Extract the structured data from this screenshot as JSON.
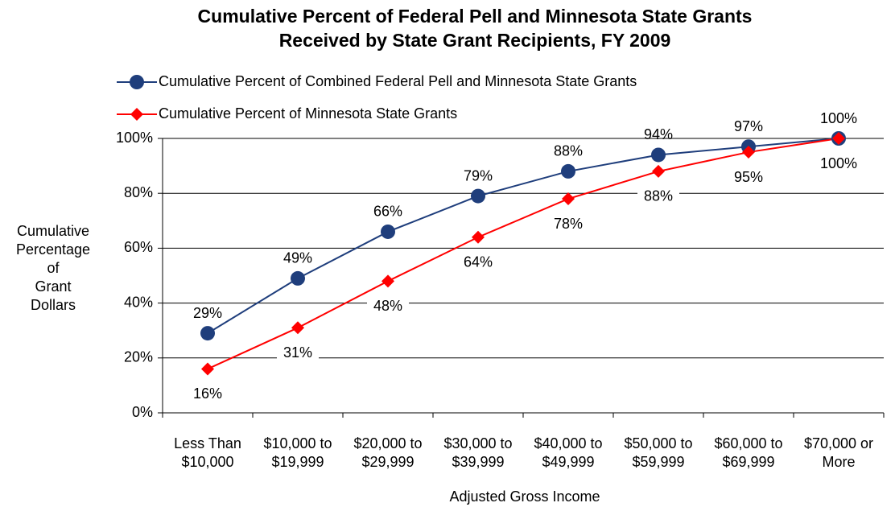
{
  "chart_data": {
    "type": "line",
    "title": [
      "Cumulative Percent of Federal Pell and Minnesota State Grants",
      "Received by State Grant Recipients, FY 2009"
    ],
    "categories": [
      [
        "Less Than",
        "$10,000"
      ],
      [
        "$10,000 to",
        "$19,999"
      ],
      [
        "$20,000 to",
        "$29,999"
      ],
      [
        "$30,000 to",
        "$39,999"
      ],
      [
        "$40,000 to",
        "$49,999"
      ],
      [
        "$50,000 to",
        "$59,999"
      ],
      [
        "$60,000 to",
        "$69,999"
      ],
      [
        "$70,000 or",
        "More"
      ]
    ],
    "series": [
      {
        "name": "Cumulative Percent of Combined Federal Pell and Minnesota State Grants",
        "color": "#1f3e7c",
        "marker": "circle",
        "values": [
          29,
          49,
          66,
          79,
          88,
          94,
          97,
          100
        ],
        "value_labels": [
          "29%",
          "49%",
          "66%",
          "79%",
          "88%",
          "94%",
          "97%",
          "100%"
        ]
      },
      {
        "name": "Cumulative Percent of Minnesota State Grants",
        "color": "#ff0000",
        "marker": "diamond",
        "values": [
          16,
          31,
          48,
          64,
          78,
          88,
          95,
          100
        ],
        "value_labels": [
          "16%",
          "31%",
          "48%",
          "64%",
          "78%",
          "88%",
          "95%",
          "100%"
        ]
      }
    ],
    "xlabel": "Adjusted Gross Income",
    "ylabel": [
      "Cumulative",
      "Percentage",
      "of",
      "Grant",
      "Dollars"
    ],
    "ylim": [
      0,
      100
    ],
    "yticks": [
      {
        "value": 0,
        "label": "0%"
      },
      {
        "value": 20,
        "label": "20%"
      },
      {
        "value": 40,
        "label": "40%"
      },
      {
        "value": 60,
        "label": "60%"
      },
      {
        "value": 80,
        "label": "80%"
      },
      {
        "value": 100,
        "label": "100%"
      }
    ],
    "grid": true
  }
}
